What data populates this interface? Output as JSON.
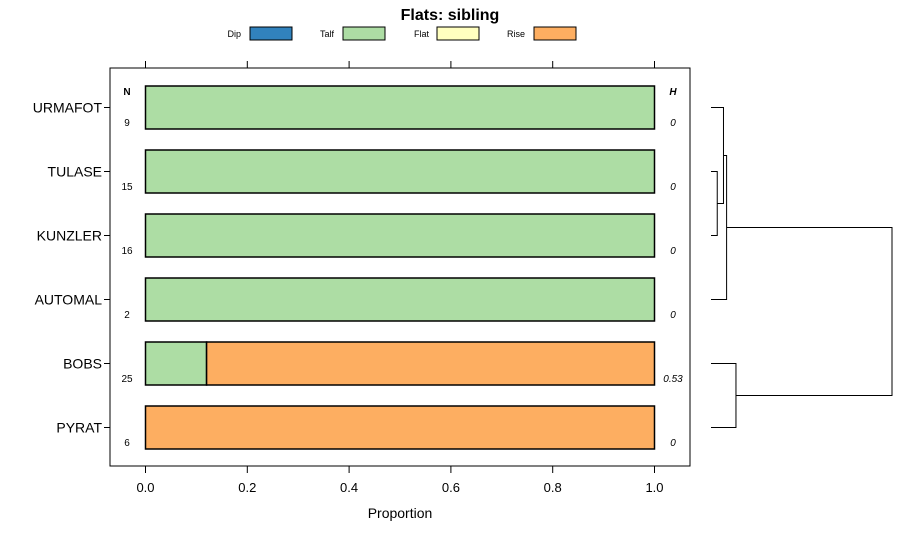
{
  "chart_data": {
    "type": "bar",
    "orientation": "horizontal",
    "stacked": true,
    "title": "Flats: sibling",
    "xlabel": "Proportion",
    "ylabel": "",
    "xlim": [
      -0.07,
      1.07
    ],
    "xticks": [
      0.0,
      0.2,
      0.4,
      0.6,
      0.8,
      1.0
    ],
    "xtick_labels": [
      "0.0",
      "0.2",
      "0.4",
      "0.6",
      "0.8",
      "1.0"
    ],
    "legend": {
      "placement": "top",
      "entries": [
        {
          "name": "Dip",
          "color": "#3182BD"
        },
        {
          "name": "Talf",
          "color": "#ADDDA4"
        },
        {
          "name": "Flat",
          "color": "#FFFFBF"
        },
        {
          "name": "Rise",
          "color": "#FDAE61"
        }
      ]
    },
    "n_header": "N",
    "h_header": "H",
    "categories": [
      "URMAFOT",
      "TULASE",
      "KUNZLER",
      "AUTOMAL",
      "BOBS",
      "PYRAT"
    ],
    "n_values": [
      "9",
      "15",
      "16",
      "2",
      "25",
      "6"
    ],
    "h_values": [
      "0",
      "0",
      "0",
      "0",
      "0.53",
      "0"
    ],
    "series": [
      {
        "name": "Dip",
        "values": [
          0,
          0,
          0,
          0,
          0,
          0
        ]
      },
      {
        "name": "Talf",
        "values": [
          1,
          1,
          1,
          1,
          0.12,
          0
        ]
      },
      {
        "name": "Flat",
        "values": [
          0,
          0,
          0,
          0,
          0,
          0
        ]
      },
      {
        "name": "Rise",
        "values": [
          0,
          0,
          0,
          0,
          0.88,
          1
        ]
      }
    ],
    "dendrogram": {
      "leaf_order": [
        "URMAFOT",
        "TULASE",
        "KUNZLER",
        "AUTOMAL",
        "BOBS",
        "PYRAT"
      ],
      "merges": [
        {
          "left": "leaf:1",
          "right": "leaf:2",
          "height": 0.02
        },
        {
          "left": "leaf:0",
          "right": "node:0",
          "height": 0.04
        },
        {
          "left": "node:1",
          "right": "leaf:3",
          "height": 0.05
        },
        {
          "left": "leaf:4",
          "right": "leaf:5",
          "height": 0.08
        },
        {
          "left": "node:2",
          "right": "node:3",
          "height": 0.58
        }
      ],
      "max_height": 0.58
    }
  }
}
